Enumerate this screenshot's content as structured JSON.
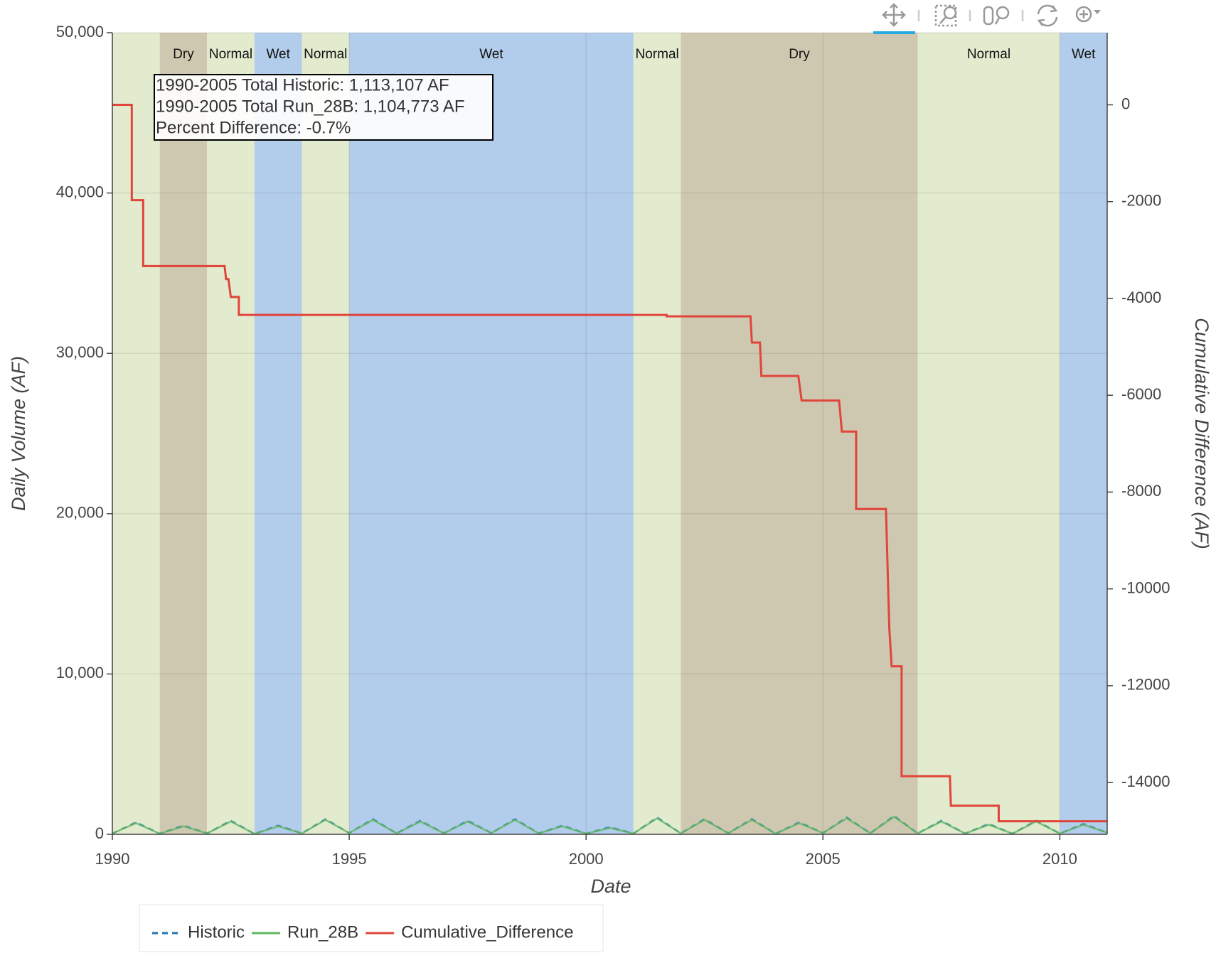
{
  "chart_data": {
    "type": "line",
    "xlabel": "Date",
    "ylabel": "Daily Volume (AF)",
    "y2label": "Cumulative Difference (AF)",
    "annotation": [
      "1990-2005 Total Historic: 1,113,107 AF",
      "1990-2005 Total Run_28B: 1,104,773 AF",
      "Percent Difference: -0.7%"
    ],
    "xlim": [
      1990,
      2011
    ],
    "xticks": [
      1990,
      1995,
      2000,
      2005,
      2010
    ],
    "ylim": [
      0,
      50000
    ],
    "yticks": [
      0,
      {
        "value": 10000,
        "label": "10,000"
      },
      {
        "value": 20000,
        "label": "20,000"
      },
      {
        "value": 30000,
        "label": "30,000"
      },
      {
        "value": 40000,
        "label": "40,000"
      },
      {
        "value": 50000,
        "label": "50,000"
      }
    ],
    "y2lim": [
      -15070,
      1490
    ],
    "y2ticks": [
      0,
      -2000,
      -4000,
      -6000,
      -8000,
      -10000,
      -12000,
      -14000
    ],
    "grid": true,
    "legend": "bottom-left",
    "bands": [
      {
        "start": 1990,
        "end": 1991,
        "label": null,
        "color": "#e3ebcf"
      },
      {
        "start": 1991,
        "end": 1992,
        "label": "Dry",
        "color": "#cfc8b0"
      },
      {
        "start": 1992,
        "end": 1993,
        "label": "Normal",
        "color": "#e3ebcf"
      },
      {
        "start": 1993,
        "end": 1994,
        "label": "Wet",
        "color": "#b2cceb"
      },
      {
        "start": 1994,
        "end": 1995,
        "label": "Normal",
        "color": "#e3ebcf"
      },
      {
        "start": 1995,
        "end": 2001,
        "label": "Wet",
        "color": "#b2cceb"
      },
      {
        "start": 2001,
        "end": 2002,
        "label": "Normal",
        "color": "#e3ebcf"
      },
      {
        "start": 2002,
        "end": 2007,
        "label": "Dry",
        "color": "#cfc8b0"
      },
      {
        "start": 2007,
        "end": 2010,
        "label": "Normal",
        "color": "#e3ebcf"
      },
      {
        "start": 2010,
        "end": 2011,
        "label": "Wet",
        "color": "#b2cceb"
      }
    ],
    "series": [
      {
        "name": "Historic",
        "color": "#1f77b4",
        "dash": true,
        "x": [
          1990,
          1990.5,
          1991,
          1991.5,
          1992,
          1992.5,
          1993,
          1993.5,
          1994,
          1994.5,
          1995,
          1995.5,
          1996,
          1996.5,
          1997,
          1997.5,
          1998,
          1998.5,
          1999,
          1999.5,
          2000,
          2000.5,
          2001,
          2001.5,
          2002,
          2002.5,
          2003,
          2003.5,
          2004,
          2004.5,
          2005,
          2005.5,
          2006,
          2006.5,
          2007,
          2007.5,
          2008,
          2008.5,
          2009,
          2009.5,
          2010,
          2010.5,
          2011
        ],
        "values": [
          50,
          750,
          40,
          550,
          60,
          850,
          30,
          550,
          60,
          950,
          80,
          950,
          60,
          850,
          70,
          850,
          80,
          950,
          60,
          550,
          40,
          450,
          50,
          1050,
          60,
          950,
          70,
          950,
          40,
          750,
          80,
          1050,
          70,
          1150,
          60,
          850,
          50,
          650,
          40,
          850,
          50,
          650,
          100
        ]
      },
      {
        "name": "Run_28B",
        "color": "#5fb55f",
        "x": [
          1990,
          1990.5,
          1991,
          1991.5,
          1992,
          1992.5,
          1993,
          1993.5,
          1994,
          1994.5,
          1995,
          1995.5,
          1996,
          1996.5,
          1997,
          1997.5,
          1998,
          1998.5,
          1999,
          1999.5,
          2000,
          2000.5,
          2001,
          2001.5,
          2002,
          2002.5,
          2003,
          2003.5,
          2004,
          2004.5,
          2005,
          2005.5,
          2006,
          2006.5,
          2007,
          2007.5,
          2008,
          2008.5,
          2009,
          2009.5,
          2010,
          2010.5,
          2011
        ],
        "values": [
          50,
          700,
          40,
          500,
          60,
          800,
          30,
          500,
          60,
          900,
          80,
          900,
          60,
          800,
          70,
          800,
          80,
          900,
          60,
          500,
          40,
          400,
          50,
          1000,
          60,
          900,
          70,
          900,
          40,
          700,
          80,
          1000,
          70,
          1100,
          60,
          800,
          50,
          600,
          40,
          800,
          50,
          600,
          100
        ]
      },
      {
        "name": "Cumulative_Difference",
        "color": "#e0443a",
        "axis": "y2",
        "x": [
          1990,
          1990.41,
          1990.41,
          1990.65,
          1990.65,
          1992.37,
          1992.4,
          1992.45,
          1992.5,
          1992.67,
          1992.67,
          2001.7,
          2001.7,
          2003.47,
          2003.5,
          2003.67,
          2003.7,
          2004.48,
          2004.55,
          2005.34,
          2005.4,
          2005.7,
          2005.7,
          2006.33,
          2006.4,
          2006.45,
          2006.66,
          2006.66,
          2007.68,
          2007.7,
          2008.71,
          2008.71,
          2011
        ],
        "values": [
          0,
          0,
          -1970,
          -1970,
          -3330,
          -3330,
          -3600,
          -3600,
          -3970,
          -3970,
          -4340,
          -4340,
          -4370,
          -4370,
          -4910,
          -4910,
          -5600,
          -5600,
          -6110,
          -6110,
          -6750,
          -6750,
          -8350,
          -8350,
          -10800,
          -11600,
          -11600,
          -13870,
          -13870,
          -14480,
          -14480,
          -14800,
          -14800
        ]
      }
    ]
  }
}
